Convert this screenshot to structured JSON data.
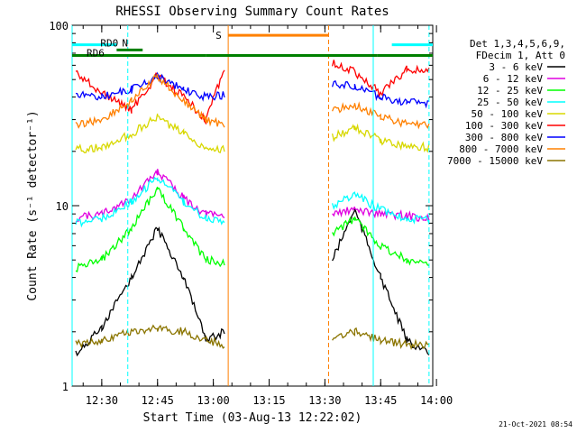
{
  "chart_data": {
    "type": "line",
    "title": "RHESSI Observing Summary Count Rates",
    "xlabel": "Start Time (03-Aug-13 12:22:02)",
    "ylabel": "Count Rate (s⁻¹ detector⁻¹)",
    "y_scale": "log",
    "ylim": [
      1,
      100
    ],
    "xlim": [
      "12:22:02",
      "13:59"
    ],
    "x_ticks": [
      "12:30",
      "12:45",
      "13:00",
      "13:15",
      "13:30",
      "13:45",
      "14:00"
    ],
    "y_ticks": [
      "1",
      "10",
      "100"
    ],
    "grid": false,
    "legend_position": "right",
    "legend_header": [
      "Det 1,3,4,5,6,9,",
      "FDecim 1, Att 0"
    ],
    "data_gaps": [
      [
        "13:04",
        "13:31"
      ]
    ],
    "series": [
      {
        "name": "3 - 6 keV",
        "color": "#000000",
        "values": [
          {
            "x": "12:23",
            "y": 1.5
          },
          {
            "x": "12:30",
            "y": 2.1
          },
          {
            "x": "12:38",
            "y": 4.0
          },
          {
            "x": "12:45",
            "y": 7.5
          },
          {
            "x": "12:52",
            "y": 4.0
          },
          {
            "x": "12:58",
            "y": 1.8
          },
          {
            "x": "13:03",
            "y": 2.0
          },
          {
            "x": "13:32",
            "y": 5.0
          },
          {
            "x": "13:38",
            "y": 9.5
          },
          {
            "x": "13:45",
            "y": 4.0
          },
          {
            "x": "13:52",
            "y": 1.8
          },
          {
            "x": "13:58",
            "y": 1.5
          }
        ]
      },
      {
        "name": "6 - 12 keV",
        "color": "#e000e0",
        "values": [
          {
            "x": "12:23",
            "y": 8.5
          },
          {
            "x": "12:30",
            "y": 9.0
          },
          {
            "x": "12:38",
            "y": 11.0
          },
          {
            "x": "12:45",
            "y": 15.5
          },
          {
            "x": "12:52",
            "y": 11.0
          },
          {
            "x": "12:58",
            "y": 9.0
          },
          {
            "x": "13:03",
            "y": 8.8
          },
          {
            "x": "13:32",
            "y": 9.0
          },
          {
            "x": "13:38",
            "y": 9.5
          },
          {
            "x": "13:45",
            "y": 9.0
          },
          {
            "x": "13:52",
            "y": 8.8
          },
          {
            "x": "13:58",
            "y": 8.5
          }
        ]
      },
      {
        "name": "12 - 25 keV",
        "color": "#00ff00",
        "values": [
          {
            "x": "12:23",
            "y": 4.5
          },
          {
            "x": "12:30",
            "y": 5.0
          },
          {
            "x": "12:38",
            "y": 7.5
          },
          {
            "x": "12:45",
            "y": 12.5
          },
          {
            "x": "12:52",
            "y": 7.5
          },
          {
            "x": "12:58",
            "y": 5.0
          },
          {
            "x": "13:03",
            "y": 4.8
          },
          {
            "x": "13:32",
            "y": 7.0
          },
          {
            "x": "13:38",
            "y": 8.5
          },
          {
            "x": "13:45",
            "y": 6.0
          },
          {
            "x": "13:52",
            "y": 5.0
          },
          {
            "x": "13:58",
            "y": 4.8
          }
        ]
      },
      {
        "name": "25 - 50 keV",
        "color": "#00ffff",
        "values": [
          {
            "x": "12:23",
            "y": 8.0
          },
          {
            "x": "12:30",
            "y": 8.5
          },
          {
            "x": "12:38",
            "y": 10.5
          },
          {
            "x": "12:45",
            "y": 14.5
          },
          {
            "x": "12:52",
            "y": 10.5
          },
          {
            "x": "12:58",
            "y": 8.5
          },
          {
            "x": "13:03",
            "y": 8.3
          },
          {
            "x": "13:32",
            "y": 10.0
          },
          {
            "x": "13:38",
            "y": 11.5
          },
          {
            "x": "13:45",
            "y": 9.5
          },
          {
            "x": "13:52",
            "y": 8.5
          },
          {
            "x": "13:58",
            "y": 8.3
          }
        ]
      },
      {
        "name": "50 - 100 keV",
        "color": "#d8d800",
        "values": [
          {
            "x": "12:23",
            "y": 20.5
          },
          {
            "x": "12:30",
            "y": 21.0
          },
          {
            "x": "12:38",
            "y": 25.0
          },
          {
            "x": "12:45",
            "y": 31.0
          },
          {
            "x": "12:52",
            "y": 25.0
          },
          {
            "x": "12:58",
            "y": 21.0
          },
          {
            "x": "13:03",
            "y": 20.5
          },
          {
            "x": "13:32",
            "y": 24.0
          },
          {
            "x": "13:38",
            "y": 27.0
          },
          {
            "x": "13:45",
            "y": 23.0
          },
          {
            "x": "13:52",
            "y": 21.5
          },
          {
            "x": "13:58",
            "y": 21.0
          }
        ]
      },
      {
        "name": "100 - 300 keV",
        "color": "#ff0000",
        "values": [
          {
            "x": "12:23",
            "y": 55.0
          },
          {
            "x": "12:30",
            "y": 42.0
          },
          {
            "x": "12:38",
            "y": 34.0
          },
          {
            "x": "12:45",
            "y": 53.0
          },
          {
            "x": "12:52",
            "y": 40.0
          },
          {
            "x": "12:58",
            "y": 30.0
          },
          {
            "x": "13:03",
            "y": 58.0
          },
          {
            "x": "13:32",
            "y": 62.0
          },
          {
            "x": "13:38",
            "y": 55.0
          },
          {
            "x": "13:45",
            "y": 42.0
          },
          {
            "x": "13:52",
            "y": 57.0
          },
          {
            "x": "13:58",
            "y": 56.0
          }
        ]
      },
      {
        "name": "300 - 800 keV",
        "color": "#0000ff",
        "values": [
          {
            "x": "12:23",
            "y": 41.0
          },
          {
            "x": "12:30",
            "y": 40.0
          },
          {
            "x": "12:38",
            "y": 44.0
          },
          {
            "x": "12:45",
            "y": 52.0
          },
          {
            "x": "12:52",
            "y": 44.0
          },
          {
            "x": "12:58",
            "y": 40.0
          },
          {
            "x": "13:03",
            "y": 41.0
          },
          {
            "x": "13:32",
            "y": 47.0
          },
          {
            "x": "13:38",
            "y": 46.0
          },
          {
            "x": "13:45",
            "y": 40.0
          },
          {
            "x": "13:52",
            "y": 37.5
          },
          {
            "x": "13:58",
            "y": 37.0
          }
        ]
      },
      {
        "name": "800 - 7000 keV",
        "color": "#ff8000",
        "values": [
          {
            "x": "12:23",
            "y": 28.0
          },
          {
            "x": "12:30",
            "y": 30.0
          },
          {
            "x": "12:38",
            "y": 38.0
          },
          {
            "x": "12:45",
            "y": 52.0
          },
          {
            "x": "12:52",
            "y": 38.0
          },
          {
            "x": "12:58",
            "y": 30.0
          },
          {
            "x": "13:03",
            "y": 28.0
          },
          {
            "x": "13:32",
            "y": 34.0
          },
          {
            "x": "13:38",
            "y": 36.0
          },
          {
            "x": "13:45",
            "y": 31.0
          },
          {
            "x": "13:52",
            "y": 28.5
          },
          {
            "x": "13:58",
            "y": 28.0
          }
        ]
      },
      {
        "name": "7000 - 15000 keV",
        "color": "#8b7500",
        "values": [
          {
            "x": "12:23",
            "y": 1.7
          },
          {
            "x": "12:30",
            "y": 1.8
          },
          {
            "x": "12:38",
            "y": 2.0
          },
          {
            "x": "12:45",
            "y": 2.1
          },
          {
            "x": "12:52",
            "y": 2.0
          },
          {
            "x": "12:58",
            "y": 1.8
          },
          {
            "x": "13:03",
            "y": 1.7
          },
          {
            "x": "13:32",
            "y": 1.8
          },
          {
            "x": "13:38",
            "y": 2.0
          },
          {
            "x": "13:45",
            "y": 1.8
          },
          {
            "x": "13:52",
            "y": 1.7
          },
          {
            "x": "13:58",
            "y": 1.7
          }
        ]
      }
    ],
    "flag_bars": [
      {
        "label": "N",
        "color": "#00ffff",
        "y": 78,
        "segments": [
          [
            "12:22:02",
            "12:34"
          ],
          [
            "13:48",
            "13:59"
          ]
        ]
      },
      {
        "label": "RD0",
        "color": "#008000",
        "y": 73,
        "segments": [
          [
            "12:34",
            "12:41"
          ]
        ]
      },
      {
        "label": "RD6",
        "color": "#008000",
        "y": 68,
        "segments": [
          [
            "12:22:02",
            "12:58"
          ],
          [
            "12:58",
            "13:31"
          ],
          [
            "13:31",
            "13:44"
          ],
          [
            "13:44",
            "13:59"
          ]
        ]
      },
      {
        "label": "S",
        "color": "#ff8000",
        "y": 88,
        "segments": [
          [
            "13:04",
            "13:31"
          ]
        ]
      }
    ],
    "vertical_markers": [
      {
        "x": "12:22:02",
        "color": "#00ffff",
        "style": "solid"
      },
      {
        "x": "12:37",
        "color": "#00ffff",
        "style": "dashed"
      },
      {
        "x": "13:04",
        "color": "#ff8000",
        "style": "solid"
      },
      {
        "x": "13:31",
        "color": "#ff8000",
        "style": "dashed"
      },
      {
        "x": "13:43",
        "color": "#00ffff",
        "style": "solid"
      },
      {
        "x": "13:58",
        "color": "#00ffff",
        "style": "dashed"
      }
    ]
  },
  "footer": {
    "timestamp": "21-Oct-2021 08:54"
  }
}
